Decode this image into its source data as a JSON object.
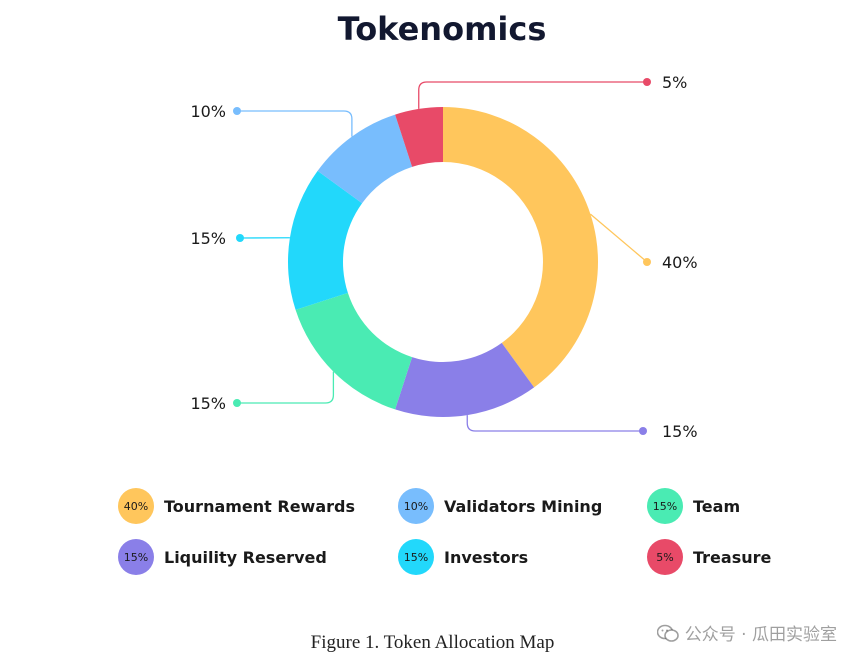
{
  "chart_data": {
    "type": "pie",
    "donut": true,
    "title": "Tokenomics",
    "segments": [
      {
        "name": "Tournament Rewards",
        "value": 40,
        "label": "40%",
        "color": "#FFC65C"
      },
      {
        "name": "Liquility Reserved",
        "value": 15,
        "label": "15%",
        "color": "#8A7FE8"
      },
      {
        "name": "Team",
        "value": 15,
        "label": "15%",
        "color": "#4AEBB3"
      },
      {
        "name": "Investors",
        "value": 15,
        "label": "15%",
        "color": "#22D8FB"
      },
      {
        "name": "Validators Mining",
        "value": 10,
        "label": "10%",
        "color": "#78BDFD"
      },
      {
        "name": "Treasure",
        "value": 5,
        "label": "5%",
        "color": "#E84A68"
      }
    ],
    "legend": [
      {
        "badge": "40%",
        "label": "Tournament Rewards",
        "color": "#FFC65C"
      },
      {
        "badge": "10%",
        "label": "Validators Mining",
        "color": "#78BDFD"
      },
      {
        "badge": "15%",
        "label": "Team",
        "color": "#4AEBB3"
      },
      {
        "badge": "15%",
        "label": "Liquility Reserved",
        "color": "#8A7FE8"
      },
      {
        "badge": "15%",
        "label": "Investors",
        "color": "#22D8FB"
      },
      {
        "badge": "5%",
        "label": "Treasure",
        "color": "#E84A68"
      }
    ],
    "legend_placement": "bottom"
  },
  "caption": "Figure 1. Token Allocation Map",
  "watermark": "公众号 · 瓜田实验室"
}
